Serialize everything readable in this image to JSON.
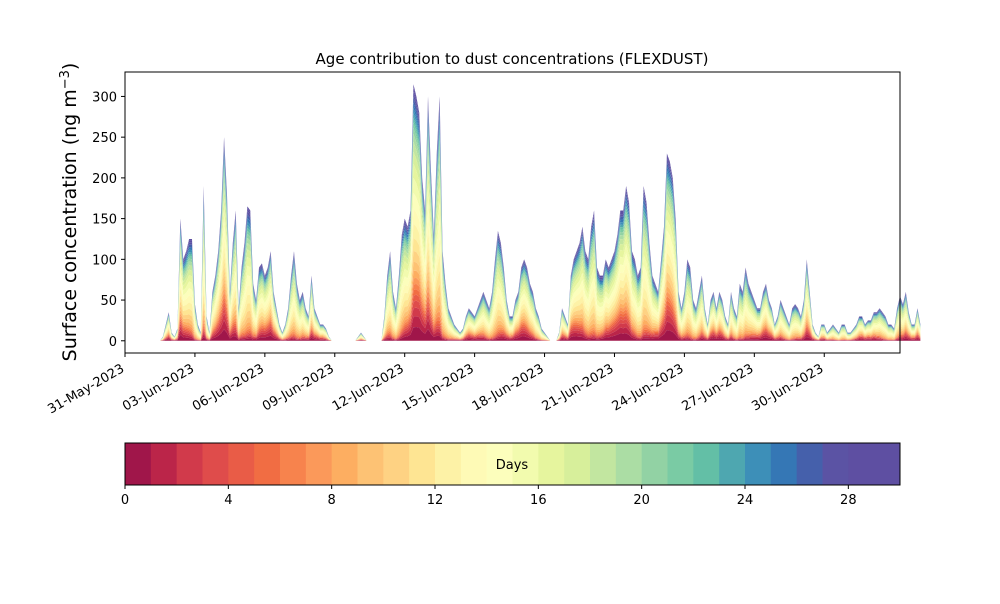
{
  "chart_data": {
    "type": "area",
    "subtype": "stacked",
    "title": "Age contribution to dust concentrations (FLEXDUST)",
    "ylabel_main": "Surface concentration (ng m",
    "ylabel_sup": "−3",
    "ylabel_close": ")",
    "xlabel": "",
    "ylim": [
      -15,
      330
    ],
    "xlim": [
      "2023-05-31T00:00",
      "2023-07-03T06:00"
    ],
    "yticks": [
      0,
      50,
      100,
      150,
      200,
      250,
      300
    ],
    "xticks": [
      "31-May-2023",
      "03-Jun-2023",
      "06-Jun-2023",
      "09-Jun-2023",
      "12-Jun-2023",
      "15-Jun-2023",
      "18-Jun-2023",
      "21-Jun-2023",
      "24-Jun-2023",
      "27-Jun-2023",
      "30-Jun-2023"
    ],
    "time_step_hours": 3,
    "start_time": "2023-06-01T12:00",
    "total": [
      0,
      5,
      20,
      35,
      10,
      5,
      15,
      150,
      100,
      110,
      125,
      125,
      45,
      20,
      10,
      190,
      30,
      10,
      60,
      80,
      110,
      160,
      250,
      180,
      60,
      120,
      160,
      40,
      90,
      120,
      165,
      160,
      70,
      50,
      90,
      95,
      80,
      90,
      110,
      60,
      40,
      20,
      10,
      20,
      40,
      80,
      110,
      70,
      50,
      60,
      40,
      30,
      80,
      40,
      30,
      20,
      20,
      15,
      5,
      0,
      0,
      0,
      0,
      0,
      0,
      0,
      0,
      0,
      5,
      10,
      5,
      0,
      0,
      0,
      0,
      0,
      0,
      30,
      80,
      110,
      60,
      40,
      80,
      130,
      150,
      140,
      160,
      315,
      300,
      280,
      200,
      160,
      300,
      210,
      130,
      230,
      300,
      110,
      70,
      40,
      30,
      20,
      15,
      10,
      15,
      30,
      40,
      35,
      30,
      40,
      50,
      60,
      50,
      40,
      60,
      100,
      135,
      120,
      90,
      50,
      30,
      30,
      50,
      60,
      90,
      100,
      90,
      70,
      60,
      40,
      30,
      15,
      10,
      5,
      0,
      0,
      0,
      10,
      40,
      30,
      20,
      80,
      100,
      110,
      120,
      140,
      110,
      100,
      140,
      160,
      90,
      80,
      80,
      100,
      90,
      100,
      110,
      130,
      160,
      160,
      190,
      170,
      110,
      100,
      80,
      90,
      190,
      170,
      120,
      80,
      70,
      60,
      100,
      140,
      230,
      220,
      200,
      150,
      60,
      40,
      60,
      100,
      90,
      50,
      40,
      60,
      80,
      40,
      20,
      50,
      60,
      40,
      60,
      50,
      30,
      20,
      60,
      40,
      30,
      70,
      60,
      90,
      70,
      60,
      50,
      40,
      40,
      60,
      70,
      50,
      40,
      20,
      30,
      50,
      40,
      30,
      20,
      40,
      45,
      40,
      30,
      50,
      100,
      60,
      20,
      10,
      5,
      20,
      20,
      10,
      15,
      20,
      15,
      10,
      20,
      20,
      10,
      10,
      15,
      20,
      30,
      30,
      20,
      25,
      25,
      35,
      35,
      40,
      35,
      30,
      20,
      20,
      15,
      40,
      55,
      45,
      60,
      35,
      20,
      20,
      40,
      20
    ],
    "age_bin_days": [
      0,
      1,
      2,
      3,
      4,
      5,
      6,
      7,
      8,
      9,
      10,
      11,
      12,
      13,
      14,
      15,
      16,
      17,
      18,
      19,
      20,
      21,
      22,
      23,
      24,
      25,
      26,
      27,
      28,
      29,
      30
    ],
    "colorbar": {
      "label": "Days",
      "ticks": [
        0,
        4,
        8,
        12,
        16,
        20,
        24,
        28
      ],
      "range": [
        0,
        30
      ],
      "colors": [
        "#a0164a",
        "#bb2549",
        "#d13a4b",
        "#df4c4b",
        "#e95c47",
        "#f16d43",
        "#f7834d",
        "#fb995a",
        "#fdae61",
        "#fdc274",
        "#fed283",
        "#fee593",
        "#fdf2a6",
        "#fefab6",
        "#fcfebc",
        "#f2fbae",
        "#e6f59e",
        "#d7ef9b",
        "#c2e6a0",
        "#abdda4",
        "#92d2a4",
        "#7acba4",
        "#63bfa6",
        "#4ea7b0",
        "#3d8fb8",
        "#3577b5",
        "#4560ab",
        "#5b53a4",
        "#5e4fa2",
        "#5e4fa2"
      ]
    },
    "legend": "none",
    "grid": false
  }
}
